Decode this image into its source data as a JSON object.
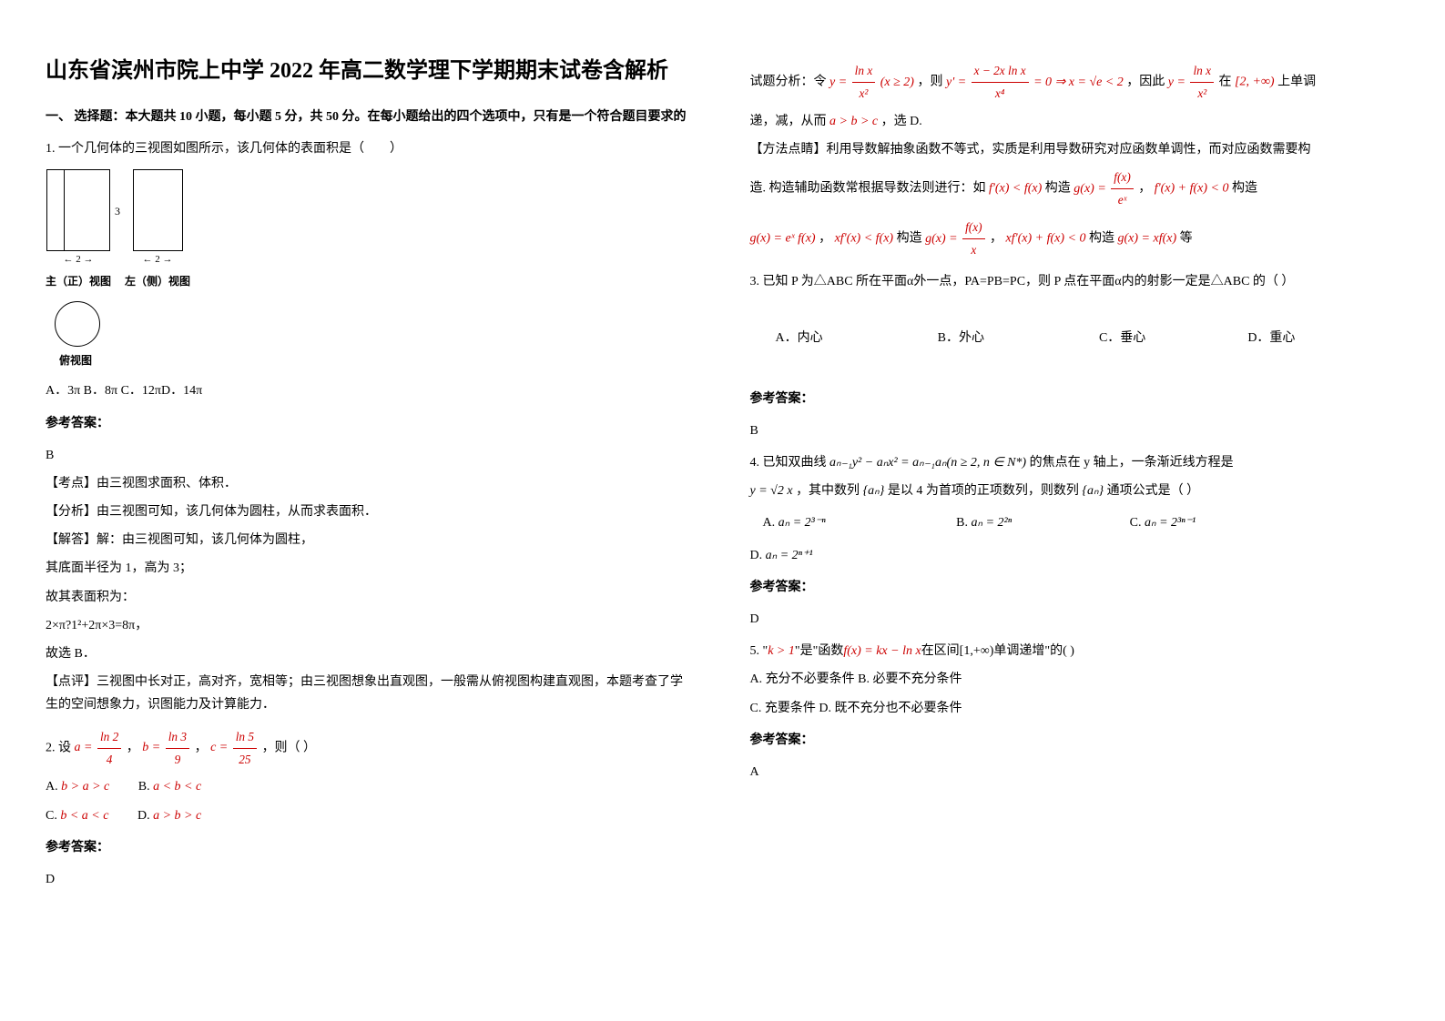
{
  "title": "山东省滨州市院上中学 2022 年高二数学理下学期期末试卷含解析",
  "section1_header": "一、 选择题：本大题共 10 小题，每小题 5 分，共 50 分。在每小题给出的四个选项中，只有是一个符合题目要求的",
  "q1": {
    "text": "1. 一个几何体的三视图如图所示，该几何体的表面积是（　　）",
    "front_label": "主（正）视图",
    "side_label": "左（侧）视图",
    "top_label": "俯视图",
    "options": "A．3π B．8π C．12πD．14π",
    "answer_label": "参考答案：",
    "answer": "B",
    "exp1": "【考点】由三视图求面积、体积．",
    "exp2": "【分析】由三视图可知，该几何体为圆柱，从而求表面积．",
    "exp3": "【解答】解：由三视图可知，该几何体为圆柱，",
    "exp4": "其底面半径为 1，高为 3；",
    "exp5": "故其表面积为：",
    "exp6": "2×π?1²+2π×3=8π，",
    "exp7": "故选 B．",
    "exp8": "【点评】三视图中长对正，高对齐，宽相等；由三视图想象出直观图，一般需从俯视图构建直观图，本题考查了学生的空间想象力，识图能力及计算能力．"
  },
  "q2": {
    "prefix": "2. 设",
    "suffix": "，则（ ）",
    "a_eq": "a =",
    "a_num": "ln 2",
    "a_den": "4",
    "b_eq": "b =",
    "b_num": "ln 3",
    "b_den": "9",
    "c_eq": "c =",
    "c_num": "ln 5",
    "c_den": "25",
    "optA_label": "A.",
    "optA": "b > a > c",
    "optB_label": "B.",
    "optB": "a < b < c",
    "optC_label": "C.",
    "optC": "b < a < c",
    "optD_label": "D.",
    "optD": "a > b > c",
    "answer_label": "参考答案：",
    "answer": "D"
  },
  "right_col": {
    "analysis_prefix": "试题分析：令",
    "y_eq": "y =",
    "y_num": "ln x",
    "y_den": "x²",
    "y_cond": "(x ≥ 2)",
    "then": "，则",
    "yprime": "y' =",
    "yprime_num": "x − 2x ln x",
    "yprime_den": "x⁴",
    "eq_zero": "= 0 ⇒ x = √e < 2",
    "therefore": "，因此",
    "y2_eq": "y =",
    "y2_num": "ln x",
    "y2_den": "x²",
    "on": "在",
    "interval": "[2, +∞)",
    "mono": "上单调",
    "line2_a": "递，减，从而",
    "abc": "a > b > c",
    "line2_b": "，选 D.",
    "method_label": "【方法点睛】利用导数解抽象函数不等式，实质是利用导数研究对应函数单调性，而对应函数需要构",
    "method2_a": "造. 构造辅助函数常根据导数法则进行：如",
    "f1": "f'(x) < f(x)",
    "method2_b": "构造",
    "g1_eq": "g(x) =",
    "g1_num": "f(x)",
    "g1_den": "eˣ",
    "comma1": "，",
    "f2": "f'(x) + f(x) < 0",
    "method2_c": "构造",
    "line3_a": "g(x) = eˣ f(x)",
    "line3_sep": "，",
    "f3": "xf'(x) < f(x)",
    "line3_b": "构造",
    "g2_eq": "g(x) =",
    "g2_num": "f(x)",
    "g2_den": "x",
    "line3_c": "，",
    "f4": "xf'(x) + f(x) < 0",
    "line3_d": "构造",
    "g3": "g(x) = xf(x)",
    "line3_e": "等"
  },
  "q3": {
    "text": "3. 已知 P 为△ABC 所在平面α外一点，PA=PB=PC，则 P 点在平面α内的射影一定是△ABC 的（  ）",
    "optA": "A．内心",
    "optB": "B．外心",
    "optC": "C．垂心",
    "optD": "D．重心",
    "answer_label": "参考答案：",
    "answer": "B"
  },
  "q4": {
    "prefix": "4. 已知双曲线",
    "eq": "aₙ₋₁y² − aₙx² = aₙ₋₁aₙ(n ≥ 2, n ∈ N*)",
    "mid": "的焦点在 y 轴上，一条渐近线方程是",
    "line2_a": "y = √2 x",
    "line2_b": "，其中数列",
    "seq": "{aₙ}",
    "line2_c": "是以 4 为首项的正项数列，则数列",
    "line2_d": "通项公式是（  ）",
    "optA_label": "A.",
    "optA": "aₙ = 2³⁻ⁿ",
    "optB_label": "B.",
    "optB": "aₙ = 2²ⁿ",
    "optC_label": "C.",
    "optC": "aₙ = 2³ⁿ⁻¹",
    "optD_label": "D.",
    "optD": "aₙ = 2ⁿ⁺¹",
    "answer_label": "参考答案：",
    "answer": "D"
  },
  "q5": {
    "prefix": "5. \"",
    "cond": "k > 1",
    "mid1": "\"是\"函数",
    "func": "f(x) = kx − ln x",
    "mid2": "在区间[1,+∞)单调递增\"的(  )",
    "optA": "A. 充分不必要条件    B. 必要不充分条件",
    "optC": "C. 充要条件    D. 既不充分也不必要条件",
    "answer_label": "参考答案：",
    "answer": "A"
  }
}
